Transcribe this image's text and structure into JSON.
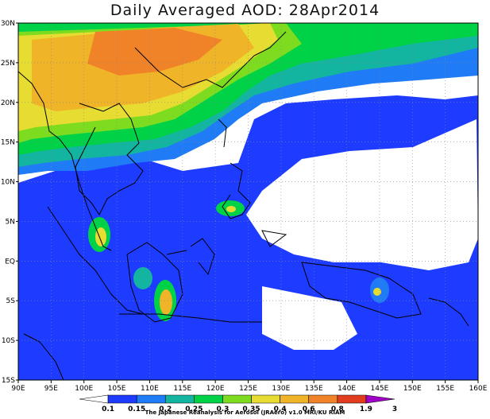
{
  "title": "Daily Averaged AOD: 28Apr2014",
  "credit": "The Japanese Reanalysis for Aerosol (JRAero) v1.0 MRI/KU RIAM",
  "map": {
    "lon_labels": [
      "90E",
      "95E",
      "100E",
      "105E",
      "110E",
      "115E",
      "120E",
      "125E",
      "130E",
      "135E",
      "140E",
      "145E",
      "150E",
      "155E",
      "160E"
    ],
    "lat_labels": [
      "30N",
      "25N",
      "20N",
      "15N",
      "10N",
      "5N",
      "EQ",
      "5S",
      "10S",
      "15S"
    ],
    "lon_range": [
      90,
      160
    ],
    "lat_range": [
      -15,
      30
    ],
    "grid": true
  },
  "colorbar": {
    "labels": [
      "0.1",
      "0.15",
      "0.2",
      "0.25",
      "0.3",
      "0.35",
      "0.4",
      "0.6",
      "0.8",
      "1.9",
      "3"
    ],
    "colors": [
      "#ffffff",
      "#1e3cff",
      "#1f7bf6",
      "#13b4a0",
      "#00d248",
      "#7ddc1f",
      "#e6dc32",
      "#f0b428",
      "#f08228",
      "#e13c1e",
      "#a000c8"
    ]
  }
}
